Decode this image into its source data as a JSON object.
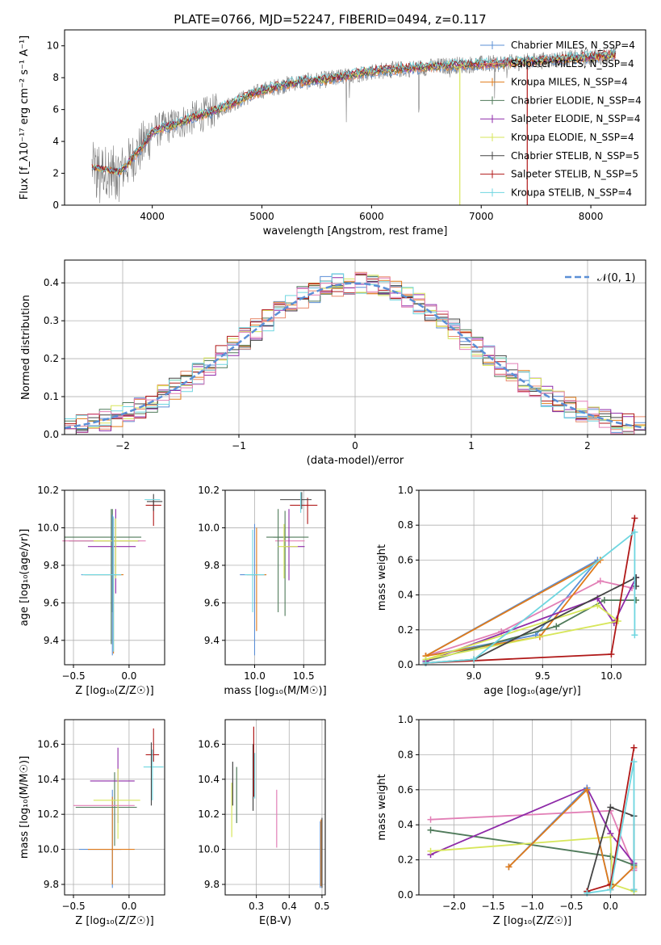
{
  "colors": {
    "chabrier_miles": "#5b8fd6",
    "salpeter_miles": "#e88a6c",
    "kroupa_miles": "#e07b1a",
    "chabrier_elodie": "#4f7a5a",
    "salpeter_elodie": "#8e2aa8",
    "kroupa_elodie": "#d7e65a",
    "chabrier_stelib": "#444444",
    "salpeter_stelib": "#b01818",
    "kroupa_stelib": "#6fd6e0",
    "pink": "#e27fb6",
    "normal": "#5b8fd6"
  },
  "chart_data": [
    {
      "id": "spectrum",
      "type": "line",
      "title": "PLATE=0766, MJD=52247, FIBERID=0494, z=0.117",
      "xlabel": "wavelength [Angstrom, rest frame]",
      "ylabel": "Flux [f_λ10⁻¹⁷ erg cm⁻² s⁻¹ A⁻¹]",
      "xlim": [
        3200,
        8500
      ],
      "ylim": [
        0,
        11
      ],
      "xticks": [
        "4000",
        "5000",
        "6000",
        "7000",
        "8000"
      ],
      "yticks": [
        "0",
        "2",
        "4",
        "6",
        "8",
        "10"
      ],
      "legend_position": "top-right",
      "continuum": {
        "x": [
          3450,
          3600,
          3700,
          3800,
          3900,
          4000,
          4300,
          4600,
          5000,
          5300,
          5600,
          6000,
          6400,
          6800,
          7200,
          7600,
          8000,
          8200
        ],
        "y": [
          2.4,
          2.2,
          2.1,
          2.8,
          3.6,
          4.6,
          5.3,
          6.0,
          7.2,
          7.7,
          7.9,
          8.4,
          8.6,
          8.8,
          8.9,
          9.1,
          9.3,
          9.4
        ]
      },
      "series": [
        {
          "name": "Chabrier MILES, N_SSP=4",
          "color_key": "chabrier_miles"
        },
        {
          "name": "Salpeter MILES, N_SSP=4",
          "color_key": "salpeter_miles"
        },
        {
          "name": "Kroupa MILES, N_SSP=4",
          "color_key": "kroupa_miles"
        },
        {
          "name": "Chabrier ELODIE, N_SSP=4",
          "color_key": "chabrier_elodie"
        },
        {
          "name": "Salpeter ELODIE, N_SSP=4",
          "color_key": "salpeter_elodie"
        },
        {
          "name": "Kroupa ELODIE, N_SSP=4",
          "color_key": "kroupa_elodie"
        },
        {
          "name": "Chabrier STELIB, N_SSP=5",
          "color_key": "chabrier_stelib"
        },
        {
          "name": "Salpeter STELIB, N_SSP=5",
          "color_key": "salpeter_stelib"
        },
        {
          "name": "Kroupa STELIB, N_SSP=4",
          "color_key": "kroupa_stelib"
        }
      ]
    },
    {
      "id": "residuals",
      "type": "line",
      "xlabel": "(data-model)/error",
      "ylabel": "Normed distribution",
      "xlim": [
        -2.5,
        2.5
      ],
      "ylim": [
        0,
        0.46
      ],
      "xticks": [
        "−2",
        "−1",
        "0",
        "1",
        "2"
      ],
      "yticks": [
        "0.0",
        "0.1",
        "0.2",
        "0.3",
        "0.4"
      ],
      "legend_position": "top-right",
      "normal_label": "𝒩(0, 1)",
      "bin_width": 0.1
    },
    {
      "id": "age_vs_Z",
      "type": "scatter",
      "xlabel": "Z [log₁₀(Z/Z☉)]",
      "ylabel": "age  [log₁₀(age/yr)]",
      "xlim": [
        -0.58,
        0.32
      ],
      "ylim": [
        9.27,
        10.2
      ],
      "xticks": [
        "−0.5",
        "0.0"
      ],
      "yticks": [
        "9.4",
        "9.6",
        "9.8",
        "10.0",
        "10.2"
      ]
    },
    {
      "id": "age_vs_mass",
      "type": "scatter",
      "xlabel": "mass [log₁₀(M/M☉)]",
      "ylabel": "",
      "xlim": [
        9.7,
        10.72
      ],
      "ylim": [
        9.27,
        10.2
      ],
      "xticks": [
        "10.0",
        "10.5"
      ],
      "yticks": [
        "9.4",
        "9.6",
        "9.8",
        "10.0",
        "10.2"
      ]
    },
    {
      "id": "weight_vs_age",
      "type": "line",
      "xlabel": "age  [log₁₀(age/yr)]",
      "ylabel": "mass weight",
      "xlim": [
        8.6,
        10.25
      ],
      "ylim": [
        0,
        1
      ],
      "xticks": [
        "9.0",
        "9.5",
        "10.0"
      ],
      "yticks": [
        "0.0",
        "0.2",
        "0.4",
        "0.6",
        "0.8",
        "1.0"
      ]
    },
    {
      "id": "mass_vs_Z",
      "type": "scatter",
      "xlabel": "Z [log₁₀(Z/Z☉)]",
      "ylabel": "mass [log₁₀(M/M☉)]",
      "xlim": [
        -0.58,
        0.32
      ],
      "ylim": [
        9.74,
        10.74
      ],
      "xticks": [
        "−0.5",
        "0.0"
      ],
      "yticks": [
        "9.8",
        "10.0",
        "10.2",
        "10.4",
        "10.6"
      ]
    },
    {
      "id": "mass_vs_ebv",
      "type": "scatter",
      "xlabel": "E(B-V)",
      "ylabel": "",
      "xlim": [
        0.205,
        0.51
      ],
      "ylim": [
        9.74,
        10.74
      ],
      "xticks": [
        "0.3",
        "0.4",
        "0.5"
      ],
      "yticks": [
        "9.8",
        "10.0",
        "10.2",
        "10.4",
        "10.6"
      ]
    },
    {
      "id": "weight_vs_Z",
      "type": "line",
      "xlabel": "Z [log₁₀(Z/Z☉)]",
      "ylabel": "mass weight",
      "xlim": [
        -2.45,
        0.45
      ],
      "ylim": [
        0,
        1
      ],
      "xticks": [
        "−2.0",
        "−1.5",
        "−1.0",
        "−0.5",
        "0.0"
      ],
      "yticks": [
        "0.0",
        "0.2",
        "0.4",
        "0.6",
        "0.8",
        "1.0"
      ]
    }
  ]
}
